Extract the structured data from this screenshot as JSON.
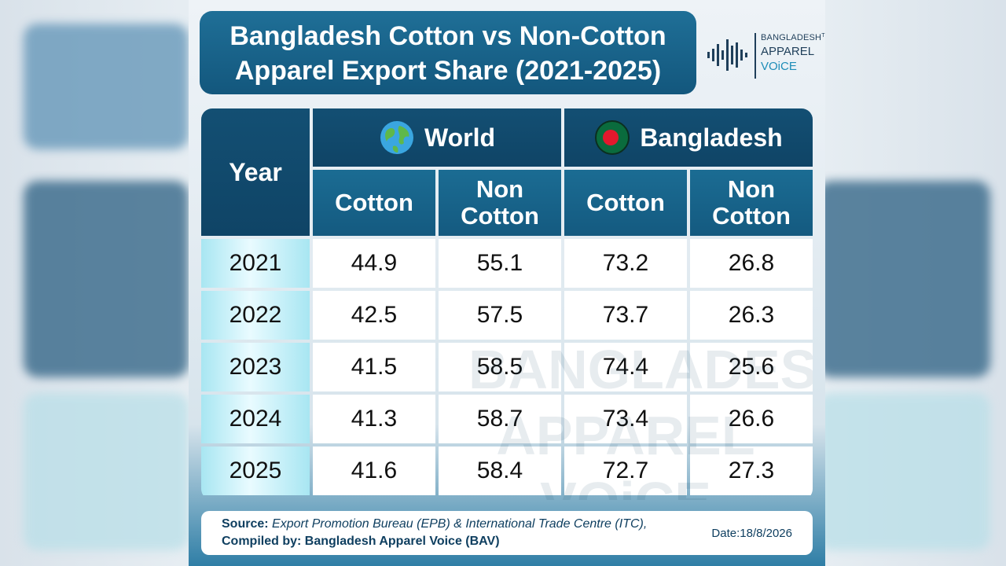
{
  "title": {
    "line1": "Bangladesh Cotton vs Non-Cotton",
    "line2": "Apparel Export Share (2021-2025)"
  },
  "logo": {
    "line1": "BANGLADESH",
    "tm": "TM",
    "line2": "APPAREL",
    "line3": "VOiCE",
    "icon": "sound-wave-icon"
  },
  "watermark": [
    "BANGLADESH",
    "APPAREL",
    "VOiCE"
  ],
  "colors": {
    "header_dark": "#134f73",
    "accent": "#1e8db8"
  },
  "chart_data": {
    "type": "table",
    "header": {
      "year": "Year",
      "groups": [
        {
          "label": "World",
          "icon": "globe-icon"
        },
        {
          "label": "Bangladesh",
          "icon": "bangladesh-flag-icon"
        }
      ],
      "subcolumns": [
        {
          "line1": "Cotton",
          "line2": ""
        },
        {
          "line1": "Non",
          "line2": "Cotton"
        },
        {
          "line1": "Cotton",
          "line2": ""
        },
        {
          "line1": "Non",
          "line2": "Cotton"
        }
      ]
    },
    "rows": [
      {
        "year": "2021",
        "values": [
          "44.9",
          "55.1",
          "73.2",
          "26.8"
        ]
      },
      {
        "year": "2022",
        "values": [
          "42.5",
          "57.5",
          "73.7",
          "26.3"
        ]
      },
      {
        "year": "2023",
        "values": [
          "41.5",
          "58.5",
          "74.4",
          "25.6"
        ]
      },
      {
        "year": "2024",
        "values": [
          "41.3",
          "58.7",
          "73.4",
          "26.6"
        ]
      },
      {
        "year": "2025",
        "values": [
          "41.6",
          "58.4",
          "72.7",
          "27.3"
        ]
      }
    ]
  },
  "footer": {
    "source_label": "Source:",
    "source_text": "Export Promotion Bureau (EPB) & International Trade Centre (ITC),",
    "compiled_label": "Compiled by:",
    "compiled_text": "Bangladesh Apparel Voice (BAV)",
    "date": "Date:18/8/2026"
  }
}
